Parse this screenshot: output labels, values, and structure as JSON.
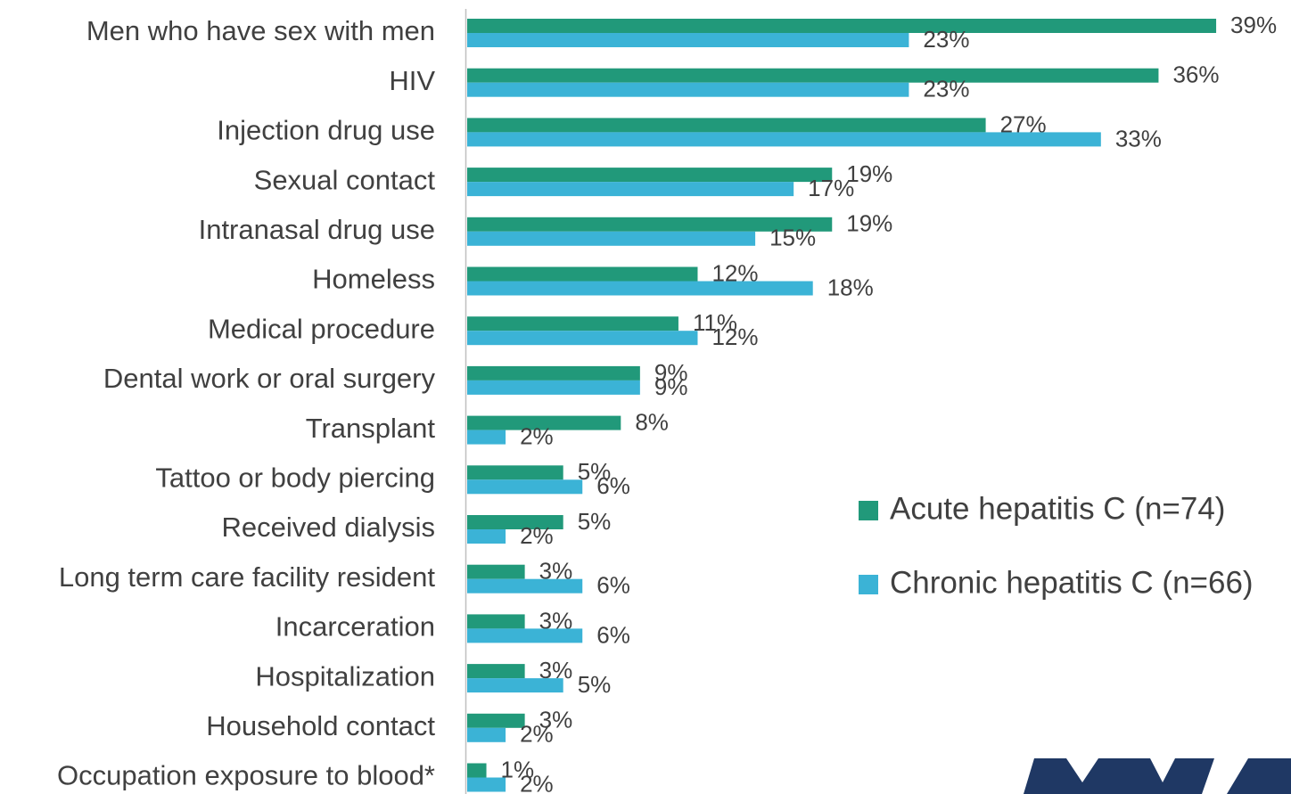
{
  "chart_data": {
    "type": "barh",
    "categories": [
      "Men who have sex with men",
      "HIV",
      "Injection drug use",
      "Sexual contact",
      "Intranasal drug use",
      "Homeless",
      "Medical procedure",
      "Dental work or oral surgery",
      "Transplant",
      "Tattoo or body piercing",
      "Received dialysis",
      "Long term care facility resident",
      "Incarceration",
      "Hospitalization",
      "Household contact",
      "Occupation exposure to blood*"
    ],
    "series": [
      {
        "name": "Acute hepatitis C (n=74)",
        "color": "#21997a",
        "values": [
          39,
          36,
          27,
          19,
          19,
          12,
          11,
          9,
          8,
          5,
          5,
          3,
          3,
          3,
          3,
          1
        ],
        "value_labels": [
          "39%",
          "36%",
          "27%",
          "19%",
          "19%",
          "12%",
          "11%",
          "9%",
          "8%",
          "5%",
          "5%",
          "3%",
          "3%",
          "3%",
          "3%",
          "1%"
        ]
      },
      {
        "name": "Chronic hepatitis C (n=66)",
        "color": "#3bb3d6",
        "values": [
          23,
          23,
          33,
          17,
          15,
          18,
          12,
          9,
          2,
          6,
          2,
          6,
          6,
          5,
          2,
          2
        ],
        "value_labels": [
          "23%",
          "23%",
          "33%",
          "17%",
          "15%",
          "18%",
          "12%",
          "9%",
          "2%",
          "6%",
          "2%",
          "6%",
          "6%",
          "5%",
          "2%",
          "2%"
        ]
      }
    ],
    "legend": "right"
  }
}
